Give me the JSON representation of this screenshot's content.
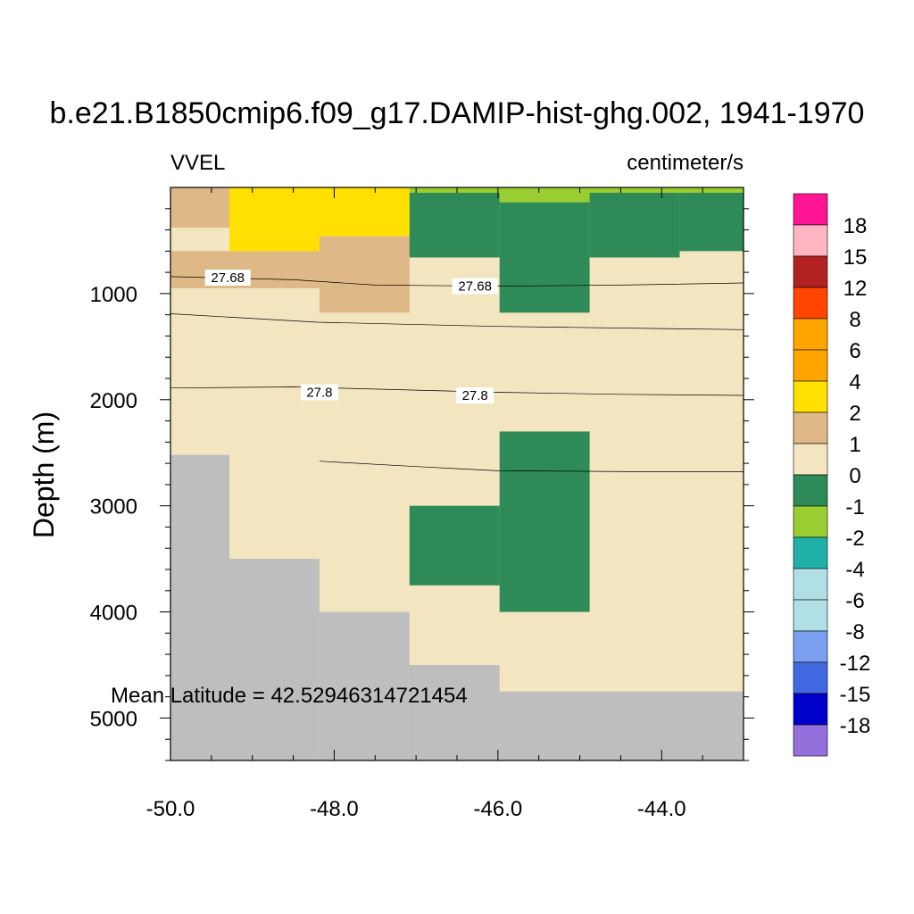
{
  "chart_data": {
    "type": "heatmap",
    "title": "b.e21.B1850cmip6.f09_g17.DAMIP-hist-ghg.002, 1941-1970",
    "left_label": "VVEL",
    "right_label": "centimeter/s",
    "ylabel": "Depth (m)",
    "xlabel": "",
    "annotation": "Mean Latitude = 42.52946314721454",
    "xlim": [
      -50.0,
      -43.0
    ],
    "ylim": [
      5400,
      0
    ],
    "grid": false,
    "x_ticks": [
      -50.0,
      -48.0,
      -46.0,
      -44.0
    ],
    "x_tick_labels": [
      "-50.0",
      "-48.0",
      "-46.0",
      "-44.0"
    ],
    "y_ticks": [
      1000,
      2000,
      3000,
      4000,
      5000
    ],
    "y_tick_labels": [
      "1000",
      "2000",
      "3000",
      "4000",
      "5000"
    ],
    "background_color": "#f3e5bf",
    "land_color": "#bebebe",
    "colorbar": {
      "labels": [
        "18",
        "15",
        "12",
        "8",
        "6",
        "4",
        "2",
        "1",
        "0",
        "-1",
        "-2",
        "-4",
        "-6",
        "-8",
        "-12",
        "-15",
        "-18"
      ],
      "colors": [
        "#ff1493",
        "#ffb6c1",
        "#b22222",
        "#ff4500",
        "#ffa500",
        "#ffa500",
        "#ffe000",
        "#deb887",
        "#f3e5bf",
        "#2e8b57",
        "#9acd32",
        "#20b2aa",
        "#b0e0e6",
        "#b0e0e6",
        "#7b9ff0",
        "#4169e1",
        "#0000cd",
        "#9370db"
      ]
    },
    "land": [
      {
        "x0": -50.0,
        "x1": -49.28,
        "y0": 2520,
        "y1": 5400
      },
      {
        "x0": -49.28,
        "x1": -48.18,
        "y0": 3500,
        "y1": 5400
      },
      {
        "x0": -48.18,
        "x1": -47.08,
        "y0": 4000,
        "y1": 5400
      },
      {
        "x0": -47.08,
        "x1": -45.98,
        "y0": 4500,
        "y1": 5400
      },
      {
        "x0": -45.98,
        "x1": -43.0,
        "y0": 4750,
        "y1": 5400
      }
    ],
    "cells": [
      {
        "x0": -50.0,
        "x1": -49.28,
        "y0": 0,
        "y1": 380,
        "value": "1-2"
      },
      {
        "x0": -50.0,
        "x1": -49.28,
        "y0": 380,
        "y1": 600,
        "value": "0-1"
      },
      {
        "x0": -50.0,
        "x1": -48.18,
        "y0": 600,
        "y1": 950,
        "value": "1-2"
      },
      {
        "x0": -49.28,
        "x1": -47.08,
        "y0": 0,
        "y1": 460,
        "value": "2-4"
      },
      {
        "x0": -49.28,
        "x1": -48.18,
        "y0": 460,
        "y1": 600,
        "value": "2-4"
      },
      {
        "x0": -48.18,
        "x1": -47.08,
        "y0": 460,
        "y1": 1180,
        "value": "1-2"
      },
      {
        "x0": -47.08,
        "x1": -43.0,
        "y0": 0,
        "y1": 50,
        "value": "-1--2"
      },
      {
        "x0": -45.98,
        "x1": -44.88,
        "y0": 0,
        "y1": 140,
        "value": "-1--2"
      },
      {
        "x0": -47.08,
        "x1": -45.98,
        "y0": 50,
        "y1": 660,
        "value": "0--1"
      },
      {
        "x0": -45.98,
        "x1": -44.88,
        "y0": 140,
        "y1": 1180,
        "value": "0--1"
      },
      {
        "x0": -44.88,
        "x1": -43.78,
        "y0": 50,
        "y1": 660,
        "value": "0--1"
      },
      {
        "x0": -43.78,
        "x1": -43.0,
        "y0": 50,
        "y1": 600,
        "value": "0--1"
      },
      {
        "x0": -47.08,
        "x1": -45.98,
        "y0": 3000,
        "y1": 3750,
        "value": "0--1"
      },
      {
        "x0": -45.98,
        "x1": -44.88,
        "y0": 2300,
        "y1": 4000,
        "value": "0--1"
      }
    ],
    "contours": [
      {
        "label": "27.68",
        "label_positions": [
          [
            -49.3,
            850
          ],
          [
            -46.28,
            930
          ]
        ],
        "points": [
          [
            -50.0,
            840
          ],
          [
            -48.5,
            870
          ],
          [
            -47.5,
            920
          ],
          [
            -46.0,
            930
          ],
          [
            -44.5,
            920
          ],
          [
            -43.0,
            900
          ]
        ]
      },
      {
        "label": "",
        "label_positions": [],
        "points": [
          [
            -50.0,
            1190
          ],
          [
            -48.2,
            1270
          ],
          [
            -46.0,
            1310
          ],
          [
            -44.0,
            1330
          ],
          [
            -43.0,
            1340
          ]
        ]
      },
      {
        "label": "27.8",
        "label_positions": [
          [
            -48.18,
            1930
          ],
          [
            -46.28,
            1960
          ]
        ],
        "points": [
          [
            -50.0,
            1890
          ],
          [
            -48.5,
            1880
          ],
          [
            -47.0,
            1910
          ],
          [
            -46.0,
            1930
          ],
          [
            -44.5,
            1950
          ],
          [
            -43.0,
            1960
          ]
        ]
      },
      {
        "label": "",
        "label_positions": [],
        "points": [
          [
            -48.18,
            2580
          ],
          [
            -47.0,
            2630
          ],
          [
            -46.0,
            2670
          ],
          [
            -44.0,
            2680
          ],
          [
            -43.0,
            2680
          ]
        ]
      }
    ]
  }
}
